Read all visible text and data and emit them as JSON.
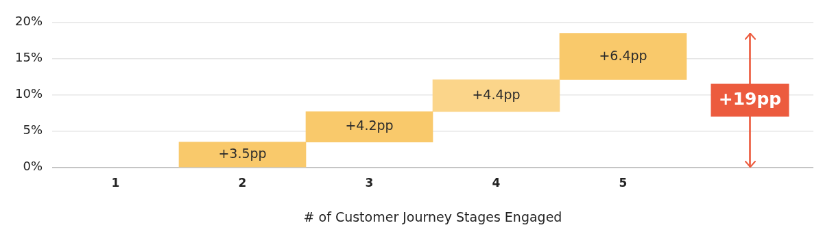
{
  "chart_data": {
    "type": "bar",
    "categories": [
      "1",
      "2",
      "3",
      "4",
      "5",
      null
    ],
    "values": [
      null,
      3.5,
      4.2,
      4.4,
      6.4,
      18.5
    ],
    "base": [
      null,
      0,
      3.5,
      7.7,
      12.1,
      0
    ],
    "colors": [
      "#f9c96b",
      "#f9c96b",
      "#f9c96b",
      "#fbd58a",
      "#f9c96b",
      "#ec5b3e"
    ],
    "value_labels": [
      null,
      "+3.5pp",
      "+4.2pp",
      "+4.4pp",
      "+6.4pp",
      "+19pp"
    ],
    "xlabel": "# of Customer Journey Stages Engaged",
    "ylim": [
      0,
      20
    ],
    "yticks": [
      {
        "value": 0,
        "label": "0%"
      },
      {
        "value": 5,
        "label": "5%"
      },
      {
        "value": 10,
        "label": "10%"
      },
      {
        "value": 15,
        "label": "15%"
      },
      {
        "value": 20,
        "label": "20%"
      }
    ],
    "grid": "y",
    "legend": false
  }
}
